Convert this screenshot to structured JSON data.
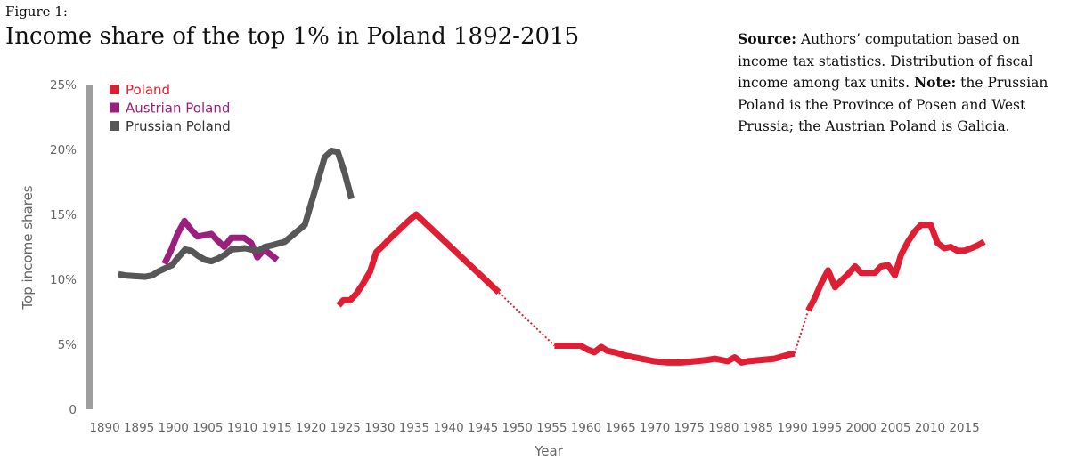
{
  "figure_label": "Figure 1:",
  "source_note": {
    "source_label": "Source:",
    "source_text": "Authors’ computation based on income tax statistics. Distribution of fiscal income among tax units.",
    "note_label": "Note:",
    "note_text": "the Prussian Poland is the Province of Posen and West Prussia; the Austrian Poland is Galicia."
  },
  "chart_data": {
    "type": "line",
    "title": "Income share of the top 1% in Poland 1892-2015",
    "xlabel": "Year",
    "ylabel": "Top income shares",
    "xlim": [
      1890,
      2015
    ],
    "ylim": [
      0,
      25
    ],
    "x_ticks": [
      1890,
      1895,
      1900,
      1905,
      1910,
      1915,
      1920,
      1925,
      1930,
      1935,
      1940,
      1945,
      1950,
      1955,
      1960,
      1965,
      1970,
      1975,
      1980,
      1985,
      1990,
      1995,
      2000,
      2005,
      2010,
      2015
    ],
    "y_ticks": [
      {
        "value": 0,
        "label": "0"
      },
      {
        "value": 5,
        "label": "5%"
      },
      {
        "value": 10,
        "label": "10%"
      },
      {
        "value": 15,
        "label": "15%"
      },
      {
        "value": 20,
        "label": "20%"
      },
      {
        "value": 25,
        "label": "25%"
      }
    ],
    "legend_position": "top-left",
    "series": [
      {
        "name": "Poland",
        "color": "#e01e33",
        "segments": [
          [
            [
              1924,
              8.0
            ],
            [
              1924.7,
              8.4
            ],
            [
              1925.7,
              8.4
            ],
            [
              1926.6,
              8.9
            ],
            [
              1927.6,
              9.7
            ],
            [
              1928.6,
              10.6
            ],
            [
              1929.5,
              12.1
            ],
            [
              1930.5,
              12.6
            ],
            [
              1931.4,
              13.1
            ],
            [
              1932.4,
              13.6
            ],
            [
              1933.4,
              14.1
            ],
            [
              1934.4,
              14.6
            ],
            [
              1935.3,
              15.0
            ],
            [
              1947.3,
              9.0
            ]
          ],
          [
            [
              1955.4,
              4.9
            ],
            [
              1957.3,
              4.9
            ],
            [
              1959.2,
              4.9
            ],
            [
              1960.2,
              4.6
            ],
            [
              1961.2,
              4.4
            ],
            [
              1962.2,
              4.8
            ],
            [
              1963.1,
              4.5
            ],
            [
              1964.1,
              4.4
            ],
            [
              1966.0,
              4.1
            ],
            [
              1968.0,
              3.9
            ],
            [
              1969.9,
              3.7
            ],
            [
              1971.9,
              3.6
            ],
            [
              1973.8,
              3.6
            ],
            [
              1975.8,
              3.7
            ],
            [
              1977.7,
              3.8
            ],
            [
              1978.7,
              3.9
            ],
            [
              1980.6,
              3.7
            ],
            [
              1981.6,
              4.0
            ],
            [
              1982.6,
              3.6
            ],
            [
              1983.5,
              3.7
            ],
            [
              1985.5,
              3.8
            ],
            [
              1987.4,
              3.9
            ],
            [
              1989.4,
              4.2
            ],
            [
              1990.3,
              4.3
            ]
          ],
          [
            [
              1992.3,
              7.6
            ],
            [
              1993.2,
              8.5
            ],
            [
              1994.2,
              9.7
            ],
            [
              1995.2,
              10.7
            ],
            [
              1996.2,
              9.4
            ],
            [
              1997.1,
              9.9
            ],
            [
              1998.1,
              10.4
            ],
            [
              1999.1,
              11.0
            ],
            [
              2000.0,
              10.5
            ],
            [
              2001.0,
              10.5
            ],
            [
              2002.0,
              10.5
            ],
            [
              2002.9,
              11.0
            ],
            [
              2003.9,
              11.1
            ],
            [
              2004.9,
              10.3
            ],
            [
              2005.8,
              11.9
            ],
            [
              2006.8,
              12.9
            ],
            [
              2007.8,
              13.7
            ],
            [
              2008.7,
              14.2
            ],
            [
              2010.1,
              14.2
            ],
            [
              2011.1,
              12.8
            ],
            [
              2012.1,
              12.4
            ],
            [
              2013.0,
              12.5
            ],
            [
              2014.0,
              12.2
            ],
            [
              2015.0,
              12.2
            ],
            [
              2016.0,
              12.4
            ],
            [
              2016.9,
              12.6
            ],
            [
              2017.9,
              12.9
            ]
          ]
        ],
        "gap_links": [
          [
            [
              1947.3,
              9.0
            ],
            [
              1955.4,
              4.9
            ]
          ],
          [
            [
              1990.3,
              4.3
            ],
            [
              1992.3,
              7.6
            ]
          ]
        ]
      },
      {
        "name": "Austrian Poland",
        "color": "#9c1f7e",
        "segments": [
          [
            [
              1898.7,
              11.2
            ],
            [
              1899.7,
              12.3
            ],
            [
              1900.6,
              13.5
            ],
            [
              1901.6,
              14.5
            ],
            [
              1902.6,
              13.8
            ],
            [
              1903.5,
              13.3
            ],
            [
              1905.5,
              13.5
            ],
            [
              1906.4,
              13.0
            ],
            [
              1907.4,
              12.5
            ],
            [
              1908.4,
              13.2
            ],
            [
              1910.3,
              13.2
            ],
            [
              1911.3,
              12.8
            ],
            [
              1912.2,
              11.7
            ],
            [
              1913.2,
              12.3
            ],
            [
              1915.1,
              11.5
            ]
          ]
        ]
      },
      {
        "name": "Prussian Poland",
        "color": "#575757",
        "segments": [
          [
            [
              1892.0,
              10.4
            ],
            [
              1893.0,
              10.3
            ],
            [
              1895.9,
              10.2
            ],
            [
              1896.9,
              10.3
            ],
            [
              1897.8,
              10.6
            ],
            [
              1899.8,
              11.1
            ],
            [
              1900.7,
              11.7
            ],
            [
              1901.7,
              12.3
            ],
            [
              1902.6,
              12.2
            ],
            [
              1903.6,
              11.8
            ],
            [
              1904.6,
              11.5
            ],
            [
              1905.5,
              11.4
            ],
            [
              1906.5,
              11.6
            ],
            [
              1907.5,
              11.9
            ],
            [
              1908.4,
              12.3
            ],
            [
              1910.4,
              12.4
            ],
            [
              1911.3,
              12.3
            ],
            [
              1912.3,
              12.2
            ],
            [
              1913.3,
              12.5
            ],
            [
              1914.2,
              12.6
            ],
            [
              1916.2,
              12.9
            ],
            [
              1917.1,
              13.3
            ],
            [
              1919.1,
              14.2
            ],
            [
              1920.0,
              15.8
            ],
            [
              1921.0,
              17.6
            ],
            [
              1922.0,
              19.4
            ],
            [
              1923.0,
              19.9
            ],
            [
              1923.9,
              19.8
            ],
            [
              1924.9,
              18.2
            ],
            [
              1925.9,
              16.2
            ]
          ]
        ]
      }
    ]
  }
}
